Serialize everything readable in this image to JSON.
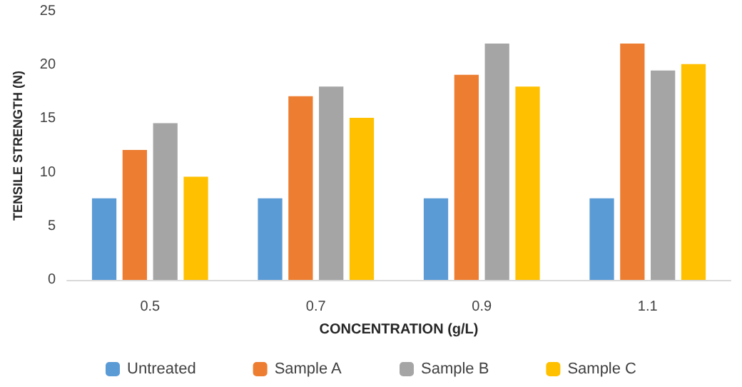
{
  "chart_data": {
    "type": "bar",
    "xlabel": "CONCENTRATION (g/L)",
    "ylabel": "TENSILE STRENGTH (N)",
    "categories": [
      "0.5",
      "0.7",
      "0.9",
      "1.1"
    ],
    "series": [
      {
        "name": "Untreated",
        "color": "#5b9bd5",
        "values": [
          7.6,
          7.6,
          7.6,
          7.6
        ]
      },
      {
        "name": "Sample A",
        "color": "#ed7d31",
        "values": [
          12.1,
          17.1,
          19.1,
          22.0
        ]
      },
      {
        "name": "Sample B",
        "color": "#a5a5a5",
        "values": [
          14.6,
          18.0,
          22.0,
          19.5
        ]
      },
      {
        "name": "Sample C",
        "color": "#ffc000",
        "values": [
          9.6,
          15.1,
          18.0,
          20.1
        ]
      }
    ],
    "ylim": [
      0,
      25
    ],
    "yticks": [
      0,
      5,
      10,
      15,
      20,
      25
    ],
    "grid": false,
    "legend": "bottom"
  }
}
